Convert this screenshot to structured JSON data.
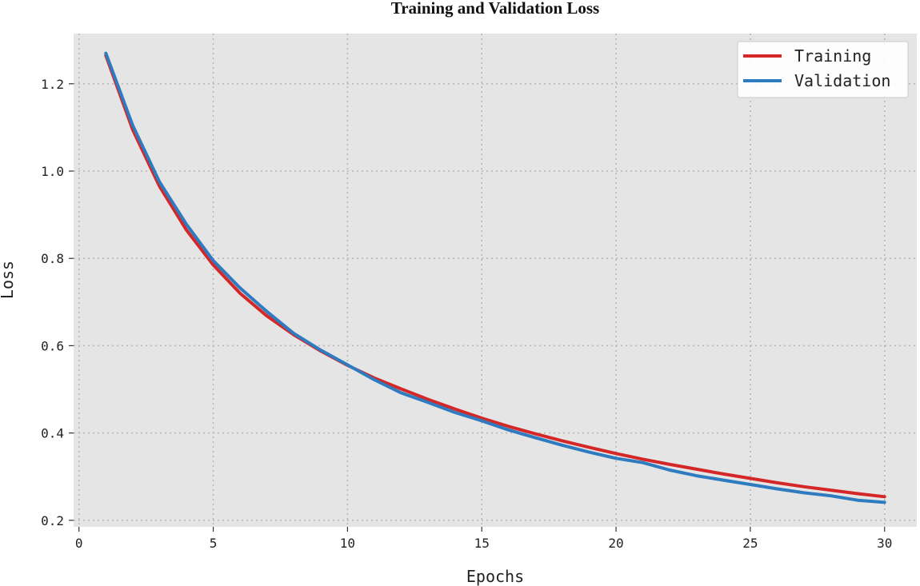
{
  "chart_data": {
    "type": "line",
    "title": "Training and Validation Loss",
    "xlabel": "Epochs",
    "ylabel": "Loss",
    "xlim": [
      -0.2,
      31.2
    ],
    "ylim": [
      0.185,
      1.315
    ],
    "xticks": [
      0,
      5,
      10,
      15,
      20,
      25,
      30
    ],
    "yticks": [
      0.2,
      0.4,
      0.6,
      0.8,
      1.0,
      1.2
    ],
    "ytick_labels": [
      "0.2",
      "0.4",
      "0.6",
      "0.8",
      "1.0",
      "1.2"
    ],
    "grid": true,
    "legend_position": "top-right",
    "x": [
      1,
      2,
      3,
      4,
      5,
      6,
      7,
      8,
      9,
      10,
      11,
      12,
      13,
      14,
      15,
      16,
      17,
      18,
      19,
      20,
      21,
      22,
      23,
      24,
      25,
      26,
      27,
      28,
      29,
      30
    ],
    "series": [
      {
        "name": "Training",
        "color": "#d62728",
        "values": [
          1.265,
          1.095,
          0.965,
          0.865,
          0.785,
          0.72,
          0.668,
          0.625,
          0.588,
          0.555,
          0.526,
          0.501,
          0.477,
          0.455,
          0.434,
          0.415,
          0.398,
          0.382,
          0.367,
          0.353,
          0.34,
          0.328,
          0.317,
          0.306,
          0.296,
          0.286,
          0.277,
          0.269,
          0.261,
          0.254
        ]
      },
      {
        "name": "Validation",
        "color": "#2e7bbf",
        "values": [
          1.27,
          1.105,
          0.975,
          0.878,
          0.795,
          0.732,
          0.678,
          0.628,
          0.59,
          0.556,
          0.522,
          0.492,
          0.47,
          0.447,
          0.428,
          0.407,
          0.389,
          0.372,
          0.356,
          0.342,
          0.332,
          0.315,
          0.302,
          0.292,
          0.282,
          0.272,
          0.263,
          0.256,
          0.246,
          0.241
        ]
      }
    ]
  }
}
